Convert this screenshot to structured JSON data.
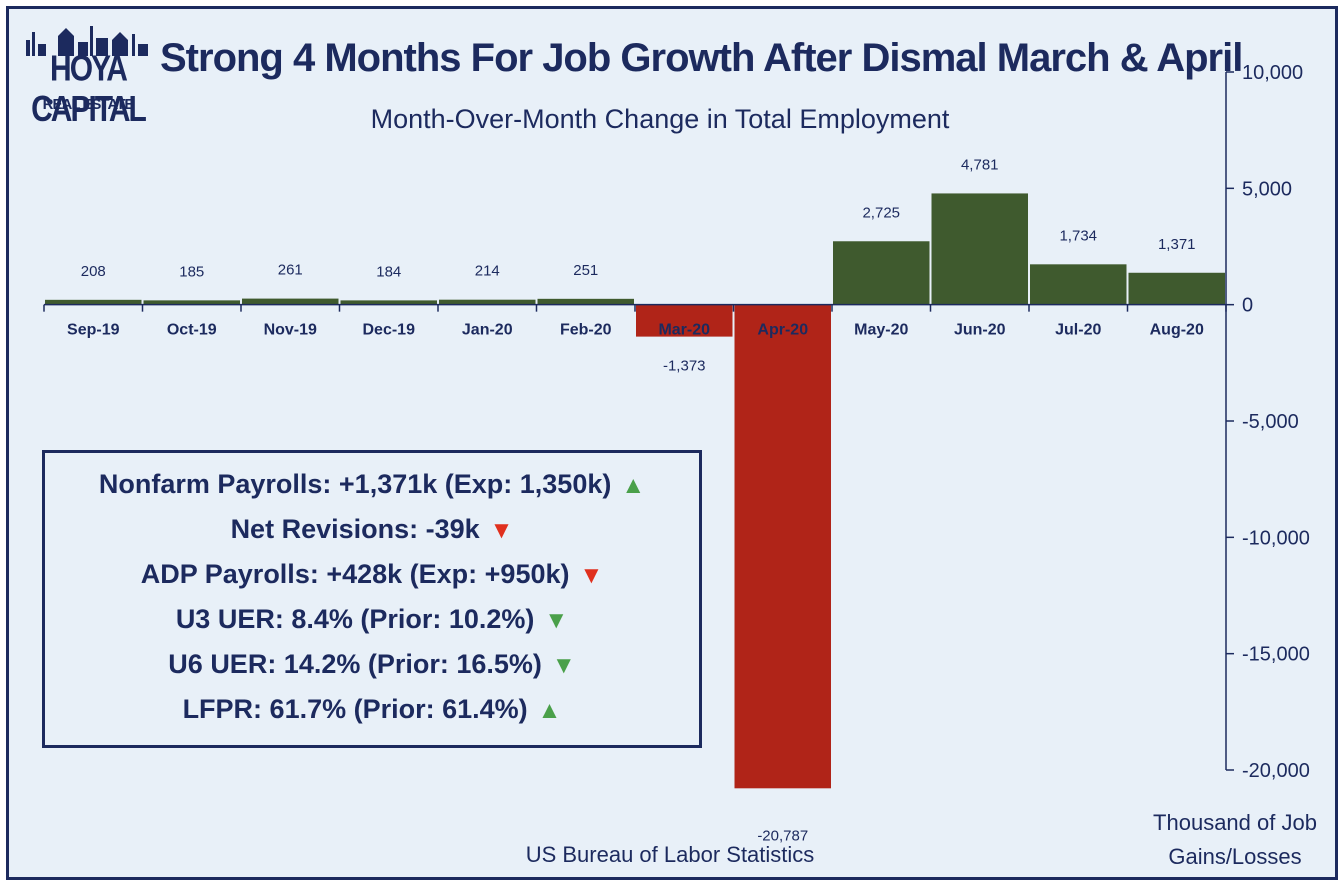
{
  "logo": {
    "name": "HOYA CAPITAL",
    "sub": "REAL ESTATE"
  },
  "title": "Strong 4 Months For Job Growth After Dismal March & April",
  "subtitle": "Month-Over-Month Change in Total Employment",
  "source": "US Bureau of Labor Statistics",
  "unit_label": "Thousand of Job Gains/Losses",
  "colors": {
    "positive": "#3f5a2e",
    "negative": "#b02418",
    "text": "#1c2a5e",
    "background": "#e8f0f8"
  },
  "chart_data": {
    "type": "bar",
    "categories": [
      "Sep-19",
      "Oct-19",
      "Nov-19",
      "Dec-19",
      "Jan-20",
      "Feb-20",
      "Mar-20",
      "Apr-20",
      "May-20",
      "Jun-20",
      "Jul-20",
      "Aug-20"
    ],
    "values": [
      208,
      185,
      261,
      184,
      214,
      251,
      -1373,
      -20787,
      2725,
      4781,
      1734,
      1371
    ],
    "value_labels": [
      "208",
      "185",
      "261",
      "184",
      "214",
      "251",
      "-1,373",
      "-20,787",
      "2,725",
      "4,781",
      "1,734",
      "1,371"
    ],
    "ylim": [
      -20000,
      10000
    ],
    "yticks": [
      10000,
      5000,
      0,
      -5000,
      -10000,
      -15000,
      -20000
    ],
    "ytick_labels": [
      "10,000",
      "5,000",
      "0",
      "-5,000",
      "-10,000",
      "-15,000",
      "-20,000"
    ],
    "y_axis_side": "right",
    "grid": false,
    "legend": "none"
  },
  "stats": [
    {
      "text": "Nonfarm Payrolls: +1,371k (Exp: 1,350k)",
      "arrow": "▲",
      "direction": "up"
    },
    {
      "text": "Net Revisions: -39k",
      "arrow": "▼",
      "direction": "down-bad"
    },
    {
      "text": "ADP Payrolls: +428k (Exp: +950k)",
      "arrow": "▼",
      "direction": "down-bad"
    },
    {
      "text": "U3 UER: 8.4% (Prior: 10.2%)",
      "arrow": "▼",
      "direction": "down-good"
    },
    {
      "text": "U6 UER: 14.2% (Prior: 16.5%)",
      "arrow": "▼",
      "direction": "down-good"
    },
    {
      "text": "LFPR: 61.7% (Prior: 61.4%)",
      "arrow": "▲",
      "direction": "up"
    }
  ]
}
